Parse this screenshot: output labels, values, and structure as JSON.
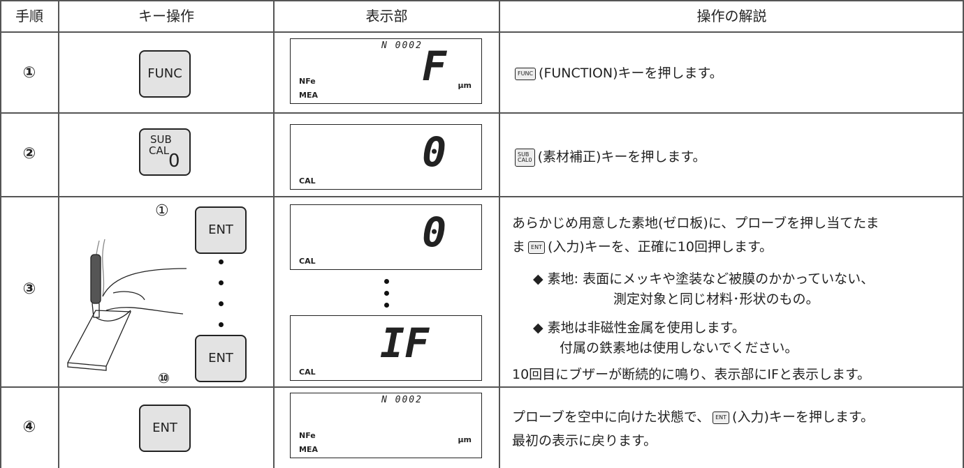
{
  "table": {
    "headers": [
      "手順",
      "キー操作",
      "表示部",
      "操作の解説"
    ],
    "rows": [
      {
        "step": "①",
        "key": "FUNC",
        "display": {
          "top": "N 0002",
          "main": "F",
          "left": "NFe",
          "unit": "μm",
          "mode": "MEA"
        },
        "description": {
          "key": "FUNC",
          "text": "(FUNCTION)キーを押します。"
        }
      },
      {
        "step": "②",
        "key": [
          "SUB",
          "CAL",
          "0"
        ],
        "display": {
          "main": "0",
          "mode": "CAL"
        },
        "description": {
          "key": [
            "SUB",
            "CAL",
            "0"
          ],
          "text": "(素材補正)キーを押します。"
        }
      },
      {
        "step": "③",
        "key_first_marker": "①",
        "key": "ENT",
        "key_last_marker": "⑩",
        "displays": [
          {
            "main": "0",
            "mode": "CAL"
          },
          {
            "main": "IF",
            "mode": "CAL"
          }
        ],
        "description": {
          "line1": "あらかじめ用意した素地(ゼロ板)に、プローブを押し当てたま",
          "line2_start": "ま",
          "key": "ENT",
          "line2_end": "(入力)キーを、正確に10回押します。",
          "notes": [
            {
              "head": "◆ 素地: 表面にメッキや塗装など被膜のかかっていない、",
              "cont": "測定対象と同じ材料･形状のもの。"
            },
            {
              "head": "◆ 素地は非磁性金属を使用します。",
              "cont": "付属の鉄素地は使用しないでください。"
            }
          ],
          "last": "10回目にブザーが断続的に鳴り、表示部にIFと表示します。"
        }
      },
      {
        "step": "④",
        "key": "ENT",
        "display": {
          "top": "N 0002",
          "left": "NFe",
          "unit": "μm",
          "mode": "MEA"
        },
        "description": {
          "line1_start": "プローブを空中に向けた状態で、",
          "key": "ENT",
          "line1_end": "(入力)キーを押します。",
          "line2": "最初の表示に戻ります。"
        }
      }
    ]
  }
}
